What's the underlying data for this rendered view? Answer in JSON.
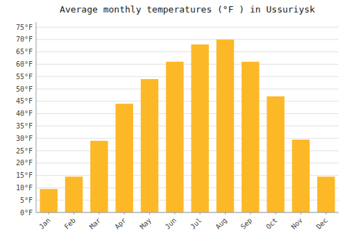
{
  "chart_data": {
    "type": "bar",
    "title": "Average monthly temperatures (°F ) in Ussuriysk",
    "categories": [
      "Jan",
      "Feb",
      "Mar",
      "Apr",
      "May",
      "Jun",
      "Jul",
      "Aug",
      "Sep",
      "Oct",
      "Nov",
      "Dec"
    ],
    "values": [
      9.5,
      14.5,
      29,
      44,
      54,
      61,
      68,
      70,
      61,
      47,
      29.5,
      14.5
    ],
    "color": "#FDB827",
    "ylim": [
      0,
      77
    ],
    "yticks": [
      {
        "value": 0,
        "label": "0°F"
      },
      {
        "value": 5,
        "label": "5°F"
      },
      {
        "value": 10,
        "label": "10°F"
      },
      {
        "value": 15,
        "label": "15°F"
      },
      {
        "value": 20,
        "label": "20°F"
      },
      {
        "value": 25,
        "label": "25°F"
      },
      {
        "value": 30,
        "label": "30°F"
      },
      {
        "value": 35,
        "label": "35°F"
      },
      {
        "value": 40,
        "label": "40°F"
      },
      {
        "value": 45,
        "label": "45°F"
      },
      {
        "value": 50,
        "label": "50°F"
      },
      {
        "value": 55,
        "label": "55°F"
      },
      {
        "value": 60,
        "label": "60°F"
      },
      {
        "value": 65,
        "label": "65°F"
      },
      {
        "value": 70,
        "label": "70°F"
      },
      {
        "value": 75,
        "label": "75°F"
      }
    ],
    "grid": true
  }
}
